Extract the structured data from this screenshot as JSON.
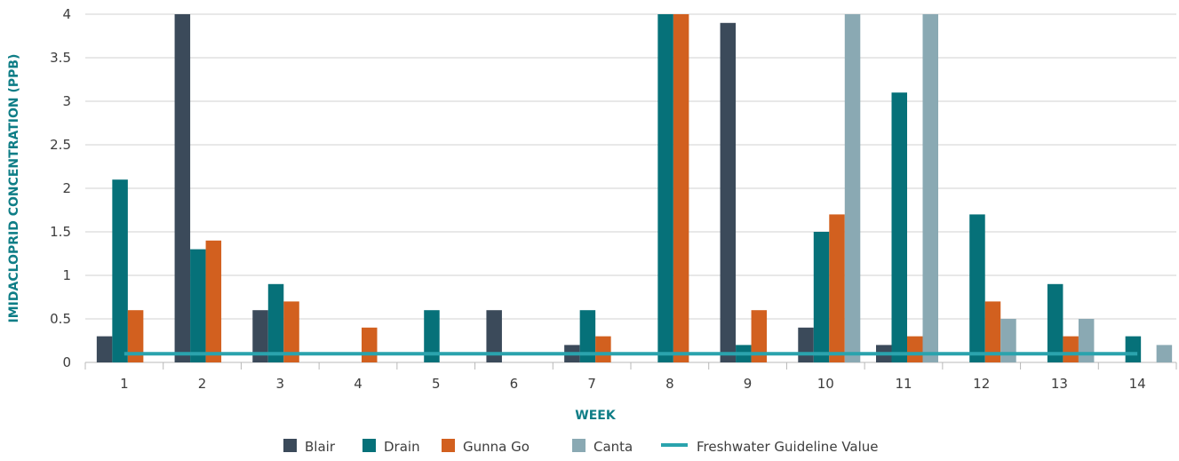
{
  "chart_data": {
    "type": "bar",
    "title": "",
    "xlabel": "WEEK",
    "ylabel": "IMIDACLOPRID CONCENTRATION (PPB)",
    "ylim": [
      0,
      4
    ],
    "yticks": [
      "0",
      "0.5",
      "1",
      "1.5",
      "2",
      "2.5",
      "3",
      "3.5",
      "4"
    ],
    "categories": [
      "1",
      "2",
      "3",
      "4",
      "5",
      "6",
      "7",
      "8",
      "9",
      "10",
      "11",
      "12",
      "13",
      "14"
    ],
    "grid": "horizontal",
    "legend_position": "bottom",
    "series": [
      {
        "name": "Blair",
        "color": "#3b4a5a",
        "values": [
          0.3,
          4,
          0.6,
          null,
          null,
          0.6,
          0.2,
          null,
          3.9,
          0.4,
          0.2,
          null,
          null,
          null
        ]
      },
      {
        "name": "Drain",
        "color": "#067179",
        "values": [
          2.1,
          1.3,
          0.9,
          null,
          0.6,
          null,
          0.6,
          4,
          0.2,
          1.5,
          3.1,
          1.7,
          0.9,
          0.3
        ]
      },
      {
        "name": "Gunna Go",
        "color": "#d2601f",
        "values": [
          0.6,
          1.4,
          0.7,
          0.4,
          null,
          null,
          0.3,
          4,
          0.6,
          1.7,
          0.3,
          0.7,
          0.3,
          null
        ]
      },
      {
        "name": "Canta",
        "color": "#8aa9b3",
        "values": [
          null,
          null,
          null,
          null,
          null,
          null,
          null,
          null,
          null,
          4,
          4,
          0.5,
          0.5,
          0.2
        ]
      }
    ],
    "reference_line": {
      "name": "Freshwater Guideline Value",
      "value": 0.1,
      "color": "#2aa3ad"
    }
  }
}
